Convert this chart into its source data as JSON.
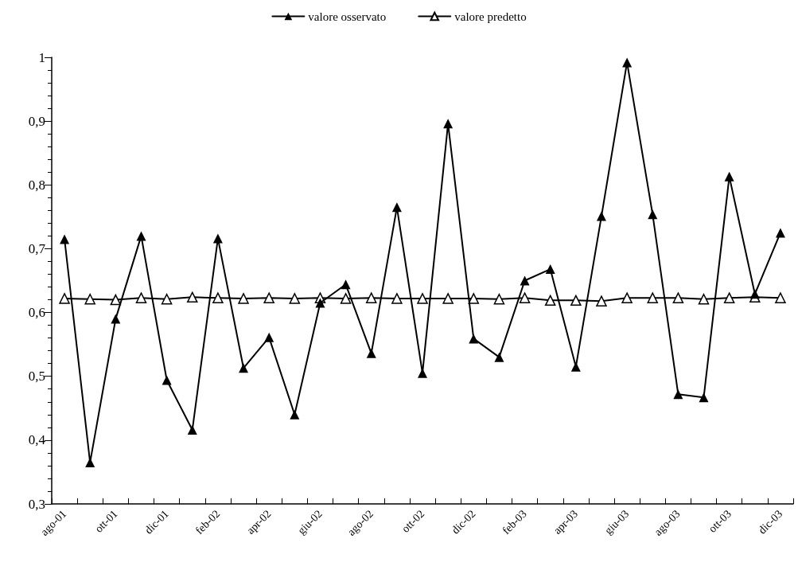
{
  "chart_data": {
    "type": "line",
    "categories": [
      "ago-01",
      null,
      "ott-01",
      null,
      "dic-01",
      null,
      "feb-02",
      null,
      "apr-02",
      null,
      "giu-02",
      null,
      "ago-02",
      null,
      "ott-02",
      null,
      "dic-02",
      null,
      "feb-03",
      null,
      "apr-03",
      null,
      "giu-03",
      null,
      "ago-03",
      null,
      "ott-03",
      null,
      "dic-03"
    ],
    "series": [
      {
        "name": "valore osservato",
        "color": "#000000",
        "values": [
          0.715,
          0.365,
          0.59,
          0.72,
          0.494,
          0.416,
          0.716,
          0.513,
          0.561,
          0.44,
          0.615,
          0.644,
          0.536,
          0.765,
          0.505,
          0.896,
          0.559,
          0.53,
          0.65,
          0.668,
          0.515,
          0.751,
          0.992,
          0.754,
          0.472,
          0.467,
          0.813,
          0.629,
          0.725
        ]
      },
      {
        "name": "valore predetto",
        "color": "#000000",
        "values": [
          0.622,
          0.621,
          0.62,
          0.623,
          0.621,
          0.624,
          0.623,
          0.622,
          0.623,
          0.622,
          0.623,
          0.622,
          0.623,
          0.622,
          0.622,
          0.622,
          0.622,
          0.621,
          0.623,
          0.619,
          0.619,
          0.618,
          0.623,
          0.623,
          0.623,
          0.621,
          0.623,
          0.624,
          0.623
        ]
      }
    ],
    "ylim": [
      0.3,
      1
    ],
    "yticks": [
      {
        "value": 0.3,
        "label": "0,3"
      },
      {
        "value": 0.4,
        "label": "0,4"
      },
      {
        "value": 0.5,
        "label": "0,5"
      },
      {
        "value": 0.6,
        "label": "0,6"
      },
      {
        "value": 0.7,
        "label": "0,7"
      },
      {
        "value": 0.8,
        "label": "0,8"
      },
      {
        "value": 0.9,
        "label": "0,9"
      },
      {
        "value": 1,
        "label": "1"
      }
    ],
    "grid": false,
    "legend": "top",
    "marker": "triangle",
    "line_style": "solid"
  }
}
